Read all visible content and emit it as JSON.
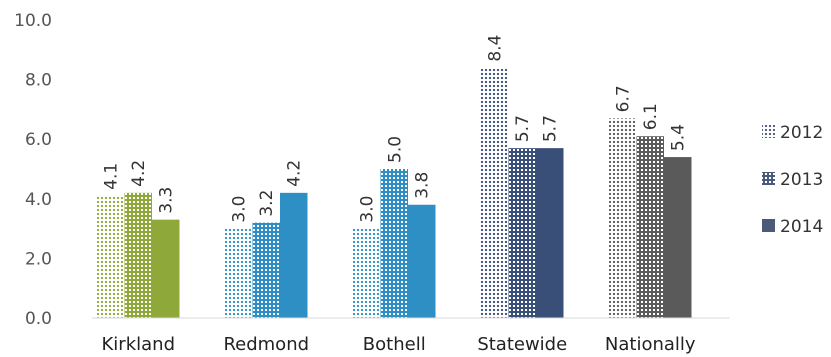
{
  "chart_data": {
    "type": "bar",
    "categories": [
      "Kirkland",
      "Redmond",
      "Bothell",
      "Statewide",
      "Nationally"
    ],
    "series": [
      {
        "name": "2012",
        "values": [
          4.1,
          3.0,
          3.0,
          8.4,
          6.7
        ],
        "pattern": "dots"
      },
      {
        "name": "2013",
        "values": [
          4.2,
          3.2,
          5.0,
          5.7,
          6.1
        ],
        "pattern": "grid"
      },
      {
        "name": "2014",
        "values": [
          3.3,
          4.2,
          3.8,
          5.7,
          5.4
        ],
        "pattern": "solid"
      }
    ],
    "value_labels": [
      [
        "4.1",
        "3.0",
        "3.0",
        "8.4",
        "6.7"
      ],
      [
        "4.2",
        "3.2",
        "5.0",
        "5.7",
        "6.1"
      ],
      [
        "3.3",
        "4.2",
        "3.8",
        "5.7",
        "5.4"
      ]
    ],
    "category_colors": [
      "#8fa83a",
      "#2e8fc4",
      "#2e8fc4",
      "#3a4f78",
      "#5a5a5a"
    ],
    "legend_color": "#4a5a7a",
    "ylim": [
      0,
      10
    ],
    "yticks": [
      "0.0",
      "2.0",
      "4.0",
      "6.0",
      "8.0",
      "10.0"
    ],
    "grid": false,
    "legend_position": "right",
    "title": "",
    "xlabel": "",
    "ylabel": ""
  }
}
